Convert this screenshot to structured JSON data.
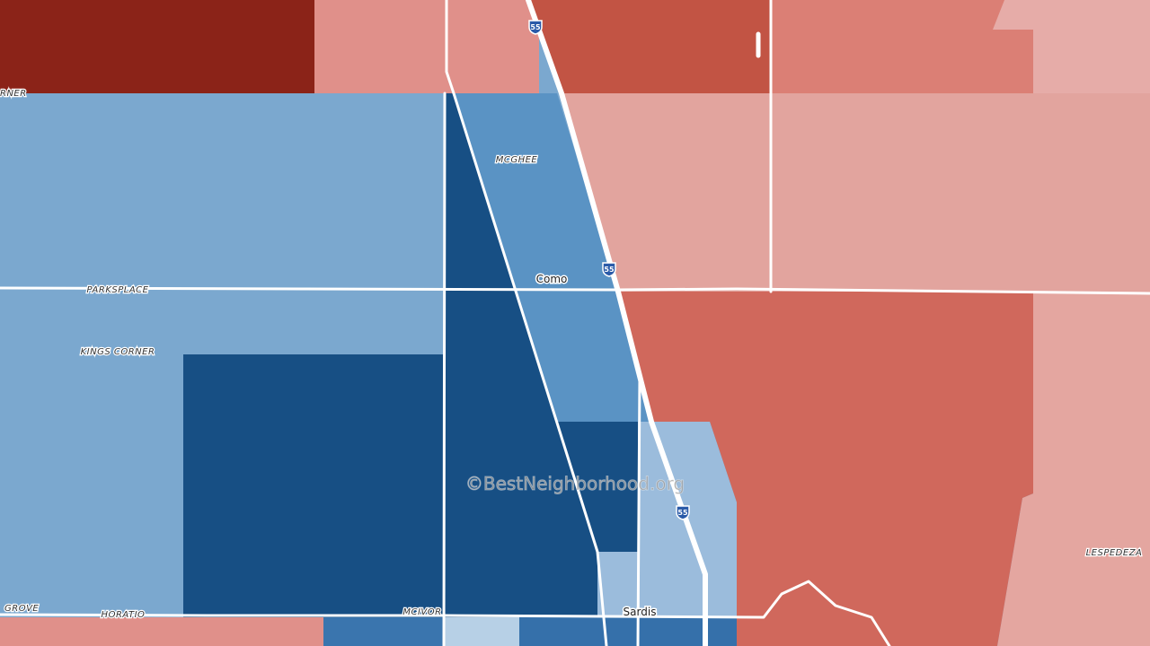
{
  "map": {
    "labels": [
      "RNER",
      "MCGHEE",
      "Como",
      "PARKSPLACE",
      "KINGS CORNER",
      "GROVE",
      "HORATIO",
      "MCIVOR",
      "Sardis",
      "LESPEDEZA"
    ],
    "highway_shields": [
      "55",
      "55",
      "55"
    ],
    "watermark": "©BestNeighborhood.org"
  }
}
